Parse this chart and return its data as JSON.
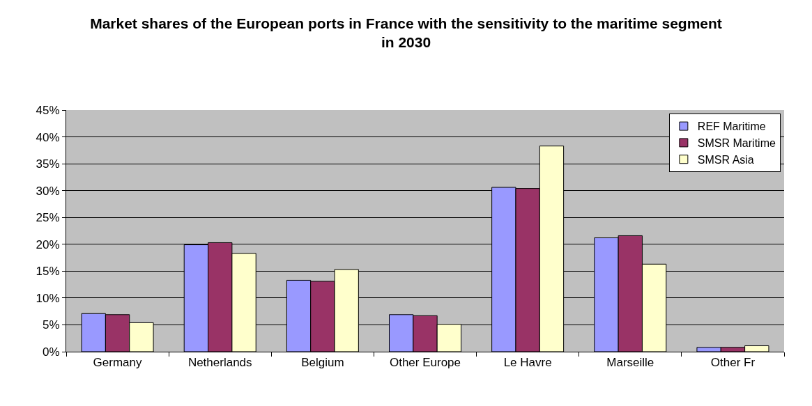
{
  "chart_data": {
    "type": "bar",
    "title": "Market shares of the European ports in France with the sensitivity to the maritime segment in 2030",
    "categories": [
      "Germany",
      "Netherlands",
      "Belgium",
      "Other Europe",
      "Le Havre",
      "Marseille",
      "Other Fr"
    ],
    "series": [
      {
        "name": "REF Maritime",
        "color": "#9999ff",
        "values": [
          7.1,
          19.9,
          13.3,
          6.9,
          30.6,
          21.2,
          0.8
        ]
      },
      {
        "name": "SMSR Maritime",
        "color": "#993366",
        "values": [
          6.9,
          20.3,
          13.1,
          6.7,
          30.4,
          21.6,
          0.8
        ]
      },
      {
        "name": "SMSR Asia",
        "color": "#ffffcc",
        "values": [
          5.4,
          18.3,
          15.3,
          5.1,
          38.3,
          16.3,
          1.1
        ]
      }
    ],
    "ylim": [
      0,
      45
    ],
    "yticks": [
      {
        "value": 0,
        "label": "0%"
      },
      {
        "value": 5,
        "label": "5%"
      },
      {
        "value": 10,
        "label": "10%"
      },
      {
        "value": 15,
        "label": "15%"
      },
      {
        "value": 20,
        "label": "20%"
      },
      {
        "value": 25,
        "label": "25%"
      },
      {
        "value": 30,
        "label": "30%"
      },
      {
        "value": 35,
        "label": "35%"
      },
      {
        "value": 40,
        "label": "40%"
      },
      {
        "value": 45,
        "label": "45%"
      }
    ],
    "grid": "y",
    "legend": "top right"
  }
}
